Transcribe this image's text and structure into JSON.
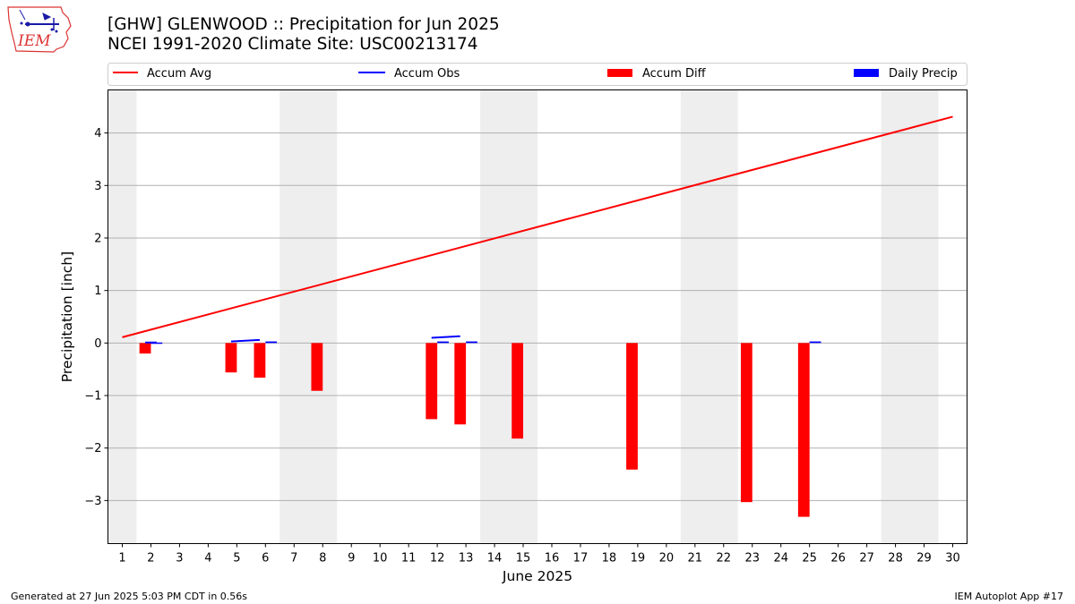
{
  "header": {
    "title_line1": "[GHW] GLENWOOD :: Precipitation for Jun 2025",
    "title_line2": "NCEI 1991-2020 Climate Site: USC00213174",
    "logo_text": "IEM"
  },
  "footer": {
    "generated": "Generated at 27 Jun 2025 5:03 PM CDT in 0.56s",
    "app": "IEM Autoplot App #17"
  },
  "colors": {
    "accum_avg": "#ff0000",
    "accum_obs": "#0000ff",
    "accum_diff": "#ff0000",
    "daily_precip": "#0000ff",
    "weekend_shade": "#eeeeee",
    "grid": "#b0b0b0"
  },
  "chart_data": {
    "type": "bar",
    "title": "[GHW] GLENWOOD :: Precipitation for Jun 2025",
    "xlabel": "June 2025",
    "ylabel": "Precipitation [inch]",
    "xlim": [
      0.5,
      30.5
    ],
    "ylim": [
      -3.82,
      4.82
    ],
    "yticks": [
      -3,
      -2,
      -1,
      0,
      1,
      2,
      3,
      4
    ],
    "xticks": [
      1,
      2,
      3,
      4,
      5,
      6,
      7,
      8,
      9,
      10,
      11,
      12,
      13,
      14,
      15,
      16,
      17,
      18,
      19,
      20,
      21,
      22,
      23,
      24,
      25,
      26,
      27,
      28,
      29,
      30
    ],
    "grid": "y",
    "legend": [
      "Accum Avg",
      "Accum Obs",
      "Accum Diff",
      "Daily Precip"
    ],
    "legend_position": "top",
    "weekend_spans": [
      [
        0.5,
        1.5
      ],
      [
        6.5,
        8.5
      ],
      [
        13.5,
        15.5
      ],
      [
        20.5,
        22.5
      ],
      [
        27.5,
        29.5
      ]
    ],
    "accum_avg": {
      "days": [
        1,
        30
      ],
      "values": [
        0.11,
        4.31
      ]
    },
    "accum_obs_segments": [
      {
        "days": [
          1.8,
          2.2
        ],
        "values": [
          0.01,
          0.01
        ]
      },
      {
        "days": [
          4.8,
          5.8
        ],
        "values": [
          0.03,
          0.06
        ]
      },
      {
        "days": [
          11.8,
          12.8
        ],
        "values": [
          0.1,
          0.13
        ]
      }
    ],
    "accum_diff": {
      "days": [
        1.8,
        4.8,
        5.8,
        7.8,
        11.8,
        12.8,
        14.8,
        18.8,
        22.8,
        24.8
      ],
      "values": [
        -0.2,
        -0.56,
        -0.66,
        -0.91,
        -1.45,
        -1.55,
        -1.82,
        -2.41,
        -3.03,
        -3.31
      ]
    },
    "daily_precip": {
      "days": [
        2.2,
        6.2,
        12.2,
        13.2,
        25.2
      ],
      "values": [
        0.01,
        0.03,
        0.03,
        0.03,
        0.03
      ]
    }
  }
}
